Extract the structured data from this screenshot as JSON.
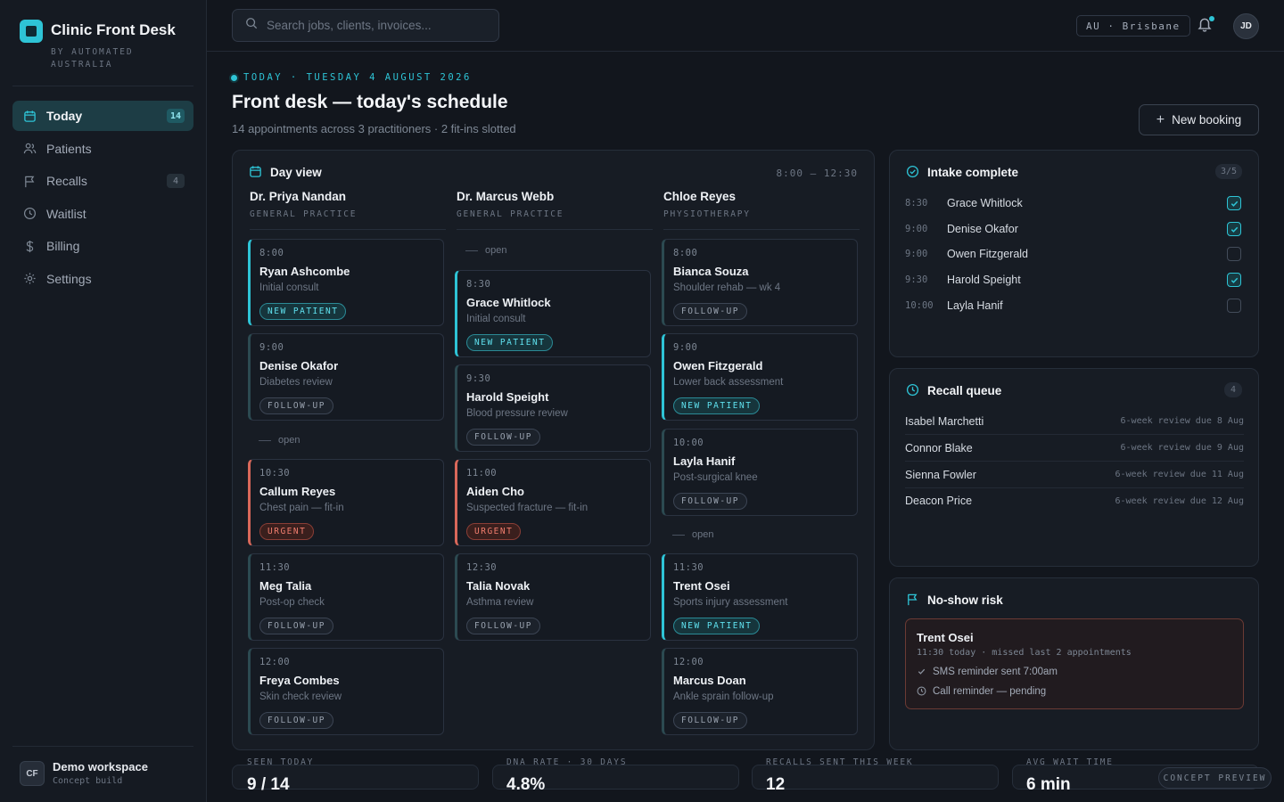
{
  "brand": {
    "title": "Clinic Front Desk",
    "subtitle": "BY AUTOMATED AUSTRALIA"
  },
  "sidebar": {
    "items": [
      {
        "label": "Today",
        "icon": "calendar-icon",
        "count": "14",
        "active": true
      },
      {
        "label": "Patients",
        "icon": "users-icon"
      },
      {
        "label": "Recalls",
        "icon": "flag-icon",
        "count": "4"
      },
      {
        "label": "Waitlist",
        "icon": "clock-icon"
      },
      {
        "label": "Billing",
        "icon": "dollar-icon"
      },
      {
        "label": "Settings",
        "icon": "gear-icon"
      }
    ],
    "workspace": {
      "initials": "CF",
      "name": "Demo workspace",
      "sub": "Concept build"
    }
  },
  "topbar": {
    "search_placeholder": "Search jobs, clients, invoices...",
    "region": "AU · Brisbane",
    "user_initials": "JD"
  },
  "header": {
    "eyebrow": "TODAY · TUESDAY 4 AUGUST 2026",
    "title": "Front desk — today's schedule",
    "subtitle": "14 appointments across 3 practitioners · 2 fit-ins slotted",
    "new_booking": "New booking"
  },
  "dayview": {
    "title": "Day view",
    "range": "8:00 – 12:30",
    "open_label": "open",
    "columns": [
      {
        "name": "Dr. Priya Nandan",
        "role": "GENERAL PRACTICE",
        "appts": [
          {
            "time": "8:00",
            "name": "Ryan Ashcombe",
            "reason": "Initial consult",
            "tag": "NEW PATIENT",
            "kind": "np"
          },
          {
            "time": "9:00",
            "name": "Denise Okafor",
            "reason": "Diabetes review",
            "tag": "FOLLOW-UP",
            "kind": "fu"
          },
          {
            "time": "10:30",
            "name": "Callum Reyes",
            "reason": "Chest pain — fit-in",
            "tag": "URGENT",
            "kind": "ur"
          },
          {
            "time": "11:30",
            "name": "Meg Talia",
            "reason": "Post-op check",
            "tag": "FOLLOW-UP",
            "kind": "fu"
          },
          {
            "time": "12:00",
            "name": "Freya Combes",
            "reason": "Skin check review",
            "tag": "FOLLOW-UP",
            "kind": "fu"
          }
        ]
      },
      {
        "name": "Dr. Marcus Webb",
        "role": "GENERAL PRACTICE",
        "appts": [
          {
            "time": "8:30",
            "name": "Grace Whitlock",
            "reason": "Initial consult",
            "tag": "NEW PATIENT",
            "kind": "np"
          },
          {
            "time": "9:30",
            "name": "Harold Speight",
            "reason": "Blood pressure review",
            "tag": "FOLLOW-UP",
            "kind": "fu"
          },
          {
            "time": "11:00",
            "name": "Aiden Cho",
            "reason": "Suspected fracture — fit-in",
            "tag": "URGENT",
            "kind": "ur"
          },
          {
            "time": "12:30",
            "name": "Talia Novak",
            "reason": "Asthma review",
            "tag": "FOLLOW-UP",
            "kind": "fu"
          }
        ]
      },
      {
        "name": "Chloe Reyes",
        "role": "PHYSIOTHERAPY",
        "appts": [
          {
            "time": "8:00",
            "name": "Bianca Souza",
            "reason": "Shoulder rehab — wk 4",
            "tag": "FOLLOW-UP",
            "kind": "fu"
          },
          {
            "time": "9:00",
            "name": "Owen Fitzgerald",
            "reason": "Lower back assessment",
            "tag": "NEW PATIENT",
            "kind": "np"
          },
          {
            "time": "10:00",
            "name": "Layla Hanif",
            "reason": "Post-surgical knee",
            "tag": "FOLLOW-UP",
            "kind": "fu"
          },
          {
            "time": "11:30",
            "name": "Trent Osei",
            "reason": "Sports injury assessment",
            "tag": "NEW PATIENT",
            "kind": "np"
          },
          {
            "time": "12:00",
            "name": "Marcus Doan",
            "reason": "Ankle sprain follow-up",
            "tag": "FOLLOW-UP",
            "kind": "fu"
          }
        ]
      }
    ]
  },
  "intake": {
    "title": "Intake complete",
    "count": "3/5",
    "rows": [
      {
        "time": "8:30",
        "name": "Grace Whitlock",
        "done": true
      },
      {
        "time": "9:00",
        "name": "Denise Okafor",
        "done": true
      },
      {
        "time": "9:00",
        "name": "Owen Fitzgerald",
        "done": false
      },
      {
        "time": "9:30",
        "name": "Harold Speight",
        "done": true
      },
      {
        "time": "10:00",
        "name": "Layla Hanif",
        "done": false
      }
    ]
  },
  "recall": {
    "title": "Recall queue",
    "count": "4",
    "rows": [
      {
        "name": "Isabel Marchetti",
        "due": "6-week review due 8 Aug"
      },
      {
        "name": "Connor Blake",
        "due": "6-week review due 9 Aug"
      },
      {
        "name": "Sienna Fowler",
        "due": "6-week review due 11 Aug"
      },
      {
        "name": "Deacon Price",
        "due": "6-week review due 12 Aug"
      }
    ]
  },
  "noshow": {
    "title": "No-show risk",
    "name": "Trent Osei",
    "meta": "11:30 today · missed last 2 appointments",
    "sms": "SMS reminder sent 7:00am",
    "call": "Call reminder — pending"
  },
  "stats": [
    {
      "label": "SEEN TODAY",
      "value": "9 / 14"
    },
    {
      "label": "DNA RATE · 30 DAYS",
      "value": "4.8%"
    },
    {
      "label": "RECALLS SENT THIS WEEK",
      "value": "12"
    },
    {
      "label": "AVG WAIT TIME",
      "value": "6 min"
    }
  ],
  "concept_badge": "CONCEPT PREVIEW",
  "colors": {
    "accent": "#2ec4d6",
    "urgent": "#d9685a",
    "background": "#12161d",
    "panel": "#171c24"
  }
}
